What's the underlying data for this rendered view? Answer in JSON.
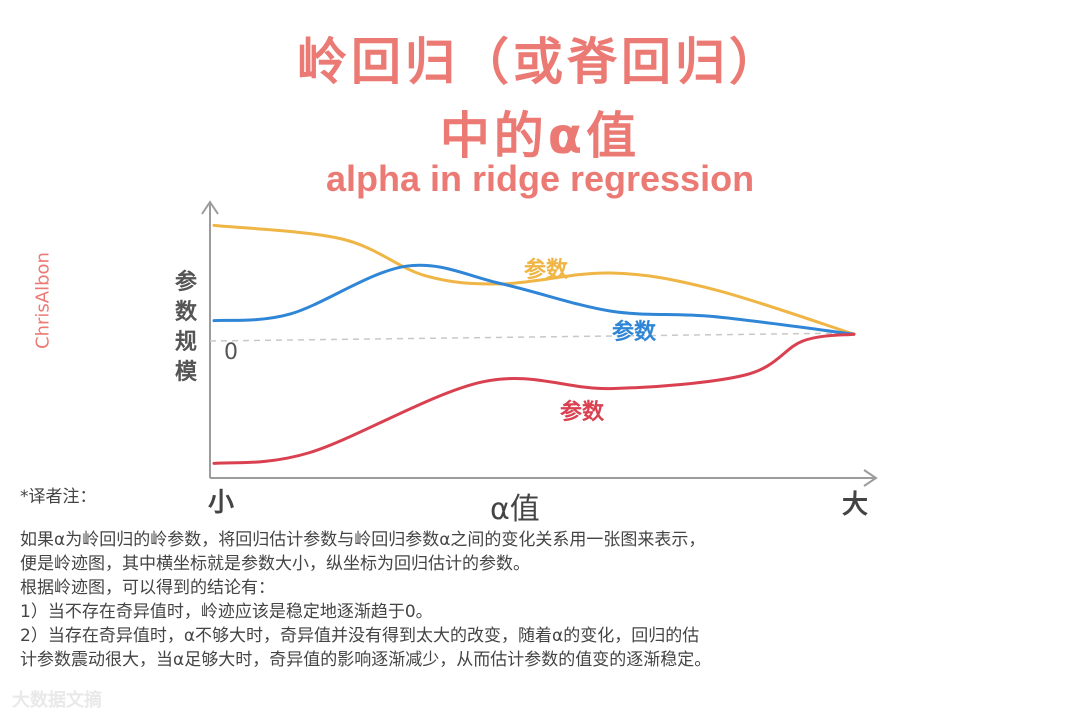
{
  "title": {
    "line1": "岭回归（或脊回归）",
    "line2": "中的α值",
    "line3": "alpha in ridge regression"
  },
  "author": "ChrisAlbon",
  "chart_data": {
    "type": "line",
    "ylabel": "参数规模",
    "y_zero_label": "0",
    "x_label": "α值",
    "x_left_label": "小",
    "x_right_label": "大",
    "series": [
      {
        "name": "参数",
        "color": "#efb545",
        "x": [
          0,
          0.2,
          0.33,
          0.45,
          0.62,
          0.78,
          1.0
        ],
        "y": [
          0.85,
          0.75,
          0.48,
          0.42,
          0.5,
          0.38,
          0.05
        ]
      },
      {
        "name": "参数",
        "color": "#2f86d6",
        "x": [
          0,
          0.12,
          0.3,
          0.45,
          0.62,
          0.78,
          1.0
        ],
        "y": [
          0.15,
          0.2,
          0.55,
          0.42,
          0.22,
          0.18,
          0.05
        ]
      },
      {
        "name": "参数",
        "color": "#d94050",
        "x": [
          0,
          0.15,
          0.42,
          0.62,
          0.83,
          0.92,
          1.0
        ],
        "y": [
          -0.9,
          -0.82,
          -0.3,
          -0.35,
          -0.25,
          0.0,
          0.05
        ]
      }
    ],
    "grid": false,
    "legend": "inline"
  },
  "notes": {
    "title": "*译者注：",
    "lines": [
      "如果α为岭回归的岭参数，将回归估计参数与岭回归参数α之间的变化关系用一张图来表示，",
      "便是岭迹图，其中横坐标就是参数大小，纵坐标为回归估计的参数。",
      "根据岭迹图，可以得到的结论有：",
      "1）当不存在奇异值时，岭迹应该是稳定地逐渐趋于0。",
      "2）当存在奇异值时，α不够大时，奇异值并没有得到太大的改变，随着α的变化，回归的估",
      "计参数震动很大，当α足够大时，奇异值的影响逐渐减少，从而估计参数的值变的逐渐稳定。"
    ]
  },
  "watermark": "大数据文摘"
}
